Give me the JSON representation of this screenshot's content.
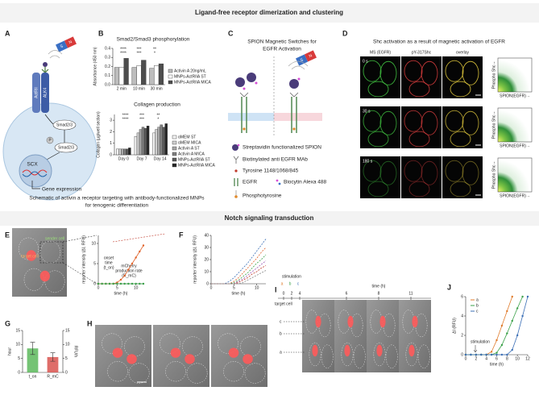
{
  "sections": {
    "top": "Ligand-free receptor dimerization and clustering",
    "bottom": "Notch signaling transduction"
  },
  "panels": {
    "a": {
      "label": "A",
      "magnet": [
        "S",
        "N"
      ],
      "receptors": [
        "ActRII",
        "ALK4"
      ],
      "smad": "Smad2/3",
      "phospho": "P",
      "smad_p": "Smad2/3",
      "nucleus": "SCX",
      "output": "Gene expression"
    },
    "b": {
      "label": "B"
    },
    "ab_caption": [
      "Schematic of activin a receptor targeting with antibody-functionalized MNPs",
      "for tenogenic differentiation"
    ],
    "c": {
      "label": "C",
      "title": [
        "SPION Magnetic Switches for",
        "EGFR Activation"
      ],
      "magnet": [
        "S",
        "N"
      ],
      "legend": [
        "Streptavidin functionalized SPION",
        "Biotinylated anti EGFR MAb",
        "Tyrosine 1148/1068/845",
        "EGFR",
        "Biocytin Alexa 488",
        "Phosphotyrosine"
      ]
    },
    "d": {
      "label": "D",
      "title": "Shc activation as a result of magnetic activation of EGFR",
      "columns": [
        "MS (EGFR)",
        "pY-317Shc",
        "overlay"
      ],
      "rows": [
        "0 s",
        "30 s",
        "180 s"
      ],
      "plot_y": "Phospho Shc→",
      "plot_x": "SPION(EGFR)→"
    },
    "e": {
      "label": "E",
      "cells": [
        "target cell",
        "sender cell"
      ]
    },
    "f": {
      "label": "F"
    },
    "g": {
      "label": "G"
    },
    "h": {
      "label": "H"
    },
    "i": {
      "label": "I",
      "stimulation": "stimulation",
      "cells_top": [
        "a",
        "b",
        "c"
      ],
      "target": "target cell",
      "time_label": "time (h)",
      "times": [
        0,
        2,
        4,
        6,
        8,
        11
      ],
      "cell_markers": [
        "c",
        "b",
        "a"
      ]
    },
    "j": {
      "label": "J"
    }
  },
  "chart_data": [
    {
      "type": "bar",
      "title": "Smad2/Smad3 phosphorylation",
      "ylabel": "Absorbance (450 nm)",
      "categories": [
        "2 min",
        "10 min",
        "30 min"
      ],
      "ylim": [
        0,
        0.4
      ],
      "yticks": [
        {
          "value": 0,
          "label": "0.0"
        },
        0.1,
        0.2,
        0.3,
        0.4
      ],
      "series": [
        {
          "name": "Activin A 20ng/mL",
          "color": "#bdbdbd",
          "values": [
            0.19,
            0.19,
            0.18
          ]
        },
        {
          "name": "MNPs-ActRIIA ST",
          "color": "#ffffff",
          "values": [
            0.19,
            0.21,
            0.21
          ]
        },
        {
          "name": "MNPs-ActRIIA MICA",
          "color": "#4d4d4d",
          "values": [
            0.29,
            0.27,
            0.23
          ]
        }
      ],
      "significance": [
        "****",
        "***",
        "**",
        "****",
        "***",
        "*"
      ],
      "legend": true
    },
    {
      "type": "bar",
      "title": "Collagen production",
      "ylabel": "Collagen (µg/well section)",
      "categories": [
        "Day 0",
        "Day 7",
        "Day 14"
      ],
      "ylim": [
        0,
        3.5
      ],
      "yticks": [
        0,
        1,
        2,
        3
      ],
      "series": [
        {
          "name": "αMEM ST",
          "color": "#f2f2f2",
          "values": [
            0.5,
            1.6,
            1.9
          ]
        },
        {
          "name": "αMEM MICA",
          "color": "#d0d0d0",
          "values": [
            0.5,
            1.9,
            2.2
          ]
        },
        {
          "name": "Activin A ST",
          "color": "#a8a8a8",
          "values": [
            0.5,
            2.2,
            2.4
          ]
        },
        {
          "name": "Activin A MICA",
          "color": "#808080",
          "values": [
            0.5,
            2.4,
            2.6
          ]
        },
        {
          "name": "MNPs-ActRIIA ST",
          "color": "#595959",
          "values": [
            0.5,
            2.3,
            2.4
          ]
        },
        {
          "name": "MNPs-ActRIIA MICA",
          "color": "#262626",
          "values": [
            0.6,
            2.5,
            2.7
          ]
        }
      ],
      "significance": [
        "****",
        "***",
        "**",
        "****",
        "***",
        "*"
      ],
      "legend": true
    },
    {
      "type": "line",
      "ylabel": "reporter intensity (ΔI, RFU)",
      "xlabel": "time (h)",
      "x": [
        0,
        1,
        2,
        3,
        4,
        5,
        6,
        7,
        8,
        9,
        10,
        11,
        12
      ],
      "xlim": [
        0,
        12
      ],
      "xticks": [
        0,
        5,
        10
      ],
      "ylim": [
        0,
        12
      ],
      "yticks": [
        0,
        5,
        10
      ],
      "series": [
        {
          "color": "#e0632b",
          "values": [
            0,
            0,
            0,
            0,
            0,
            0.3,
            1,
            2,
            3.5,
            5,
            6.5,
            8,
            9.5
          ]
        },
        {
          "color": "#3aa048",
          "values": [
            0,
            0,
            0,
            0,
            0,
            0,
            0,
            0,
            0,
            0,
            0,
            0,
            0
          ]
        }
      ],
      "markers": true,
      "onset_label": [
        "onset",
        "time",
        "(t_on)"
      ],
      "rate_label": [
        "mCherry",
        "production rate",
        "(R_mC)"
      ]
    },
    {
      "type": "line",
      "ylabel": "reporter intensity (ΔI, RFU)",
      "xlabel": "time (h)",
      "x": [
        0,
        1,
        2,
        3,
        4,
        5,
        6,
        7,
        8,
        9,
        10,
        11,
        12
      ],
      "xlim": [
        0,
        12
      ],
      "xticks": [
        0,
        5,
        10
      ],
      "ylim": [
        0,
        40
      ],
      "yticks": [
        0,
        10,
        20,
        30,
        40
      ],
      "series": [
        {
          "color": "#3b6fb6",
          "values": [
            0,
            0,
            0,
            0,
            2,
            5,
            9,
            13,
            17,
            22,
            27,
            32,
            37
          ]
        },
        {
          "color": "#e0632b",
          "values": [
            0,
            0,
            0,
            0,
            0,
            2,
            5,
            9,
            13,
            17,
            21,
            26,
            30
          ]
        },
        {
          "color": "#3aa048",
          "values": [
            0,
            0,
            0,
            0,
            0,
            1,
            3,
            6,
            9,
            13,
            17,
            20,
            24
          ]
        },
        {
          "color": "#9b59b6",
          "values": [
            0,
            0,
            0,
            0,
            0,
            0,
            2,
            4,
            7,
            10,
            13,
            16,
            19
          ]
        },
        {
          "color": "#c0392b",
          "values": [
            0,
            0,
            0,
            0,
            0,
            0,
            1,
            3,
            5,
            8,
            10,
            13,
            15
          ]
        },
        {
          "color": "#888888",
          "values": [
            0,
            0,
            0,
            0,
            0,
            0,
            0,
            1,
            3,
            5,
            7,
            9,
            11
          ]
        }
      ],
      "dashed": true
    },
    {
      "type": "bar",
      "ylabel": "hour",
      "y2label": "RFU/h",
      "categories": [
        "t_on",
        "R_mC"
      ],
      "values": [
        8.6,
        5.5
      ],
      "errors": [
        2.2,
        1.5
      ],
      "colors": [
        "#5cb85c",
        "#d9534f"
      ],
      "value_axes": [
        "y",
        "y2"
      ],
      "ylim": [
        0,
        15
      ],
      "yticks": [
        0,
        5,
        10,
        15
      ],
      "y2lim": [
        0,
        15
      ],
      "y2ticks": [
        0,
        5,
        10,
        15
      ]
    },
    {
      "type": "line",
      "ylabel": "ΔI (RFU)",
      "xlabel": "time (h)",
      "x": [
        0,
        1,
        2,
        3,
        4,
        5,
        6,
        7,
        8,
        9,
        10,
        11,
        12
      ],
      "xlim": [
        0,
        12
      ],
      "xticks": [
        0,
        2,
        4,
        6,
        8,
        10,
        12
      ],
      "ylim": [
        0,
        6
      ],
      "yticks": [
        0,
        2,
        4,
        6
      ],
      "series": [
        {
          "name": "a",
          "color": "#e07b2b",
          "values": [
            0,
            0,
            0,
            0,
            0,
            0.3,
            1.5,
            3,
            4.5,
            6,
            null,
            null,
            null
          ]
        },
        {
          "name": "b",
          "color": "#3aa048",
          "values": [
            0,
            0,
            0,
            0,
            0,
            0,
            0.2,
            1,
            2.2,
            3.5,
            4.8,
            6,
            null
          ]
        },
        {
          "name": "c",
          "color": "#3b6fb6",
          "values": [
            0,
            0,
            0,
            0,
            0,
            0,
            0,
            0,
            0,
            0.5,
            2,
            4,
            6
          ]
        }
      ],
      "markers": true,
      "legend": true,
      "annotation": "stimulation"
    }
  ]
}
